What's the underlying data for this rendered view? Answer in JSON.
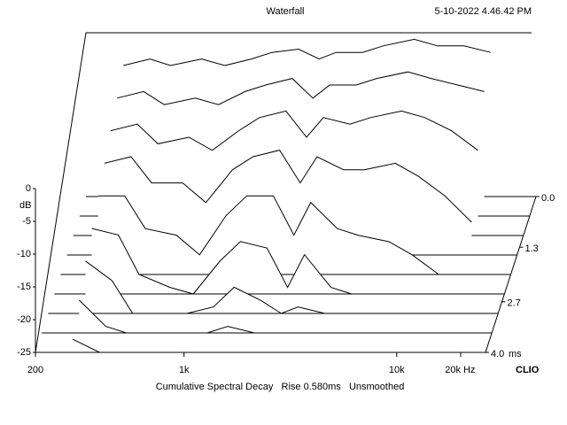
{
  "chart_data": {
    "type": "waterfall",
    "title": "Waterfall",
    "timestamp": "5-10-2022 4.46.42 PM",
    "footer": "Cumulative Spectral Decay   Rise 0.580ms   Unsmoothed",
    "brand": "CLIO",
    "ylabel": "dB",
    "xlabel": "Hz",
    "zlabel": "ms",
    "color": "#000000",
    "log_x": true,
    "xlim": [
      200,
      20000
    ],
    "ylim": [
      -25,
      0
    ],
    "zlim": [
      0,
      4
    ],
    "xticks": [
      200,
      {
        "value": 1000,
        "label": "1k"
      },
      {
        "value": 10000,
        "label": "10k"
      },
      {
        "value": 20000,
        "label": "20k"
      }
    ],
    "yticks": [
      0,
      -5,
      -10,
      -15,
      -20,
      -25
    ],
    "zticks": [
      {
        "value": 0,
        "label": "0.0"
      },
      1.3,
      2.7,
      {
        "value": 4,
        "label": "4.0"
      }
    ],
    "x": [
      300,
      400,
      500,
      700,
      900,
      1200,
      1500,
      2000,
      2500,
      3000,
      4000,
      5000,
      7000,
      9000,
      12000,
      16000
    ],
    "z": [
      0,
      0.5,
      1,
      1.5,
      2,
      2.5,
      3,
      3.5,
      4
    ],
    "values": [
      [
        -5,
        -4,
        -5,
        -4,
        -5,
        -4,
        -3,
        -2.5,
        -4,
        -3,
        -3,
        -2,
        -1,
        -2,
        -2,
        -3
      ],
      [
        -7,
        -6,
        -8,
        -7,
        -8,
        -6,
        -5,
        -4,
        -7,
        -5,
        -5,
        -4,
        -3,
        -4,
        -5,
        -6
      ],
      [
        -9,
        -8,
        -11,
        -10,
        -12,
        -9,
        -7,
        -6,
        -10,
        -7,
        -8,
        -7,
        -6,
        -7,
        -9,
        -12
      ],
      [
        -11,
        -10,
        -14,
        -14,
        -17,
        -12,
        -10,
        -9,
        -14,
        -10,
        -12,
        -12,
        -11,
        -13,
        -16,
        -20
      ],
      [
        -13,
        -13,
        -18,
        -19,
        -22,
        -16,
        -13,
        -13,
        -19,
        -14,
        -18,
        -19,
        -20,
        -22,
        -25,
        -25
      ],
      [
        -15,
        -16,
        -22,
        -24,
        -25,
        -20,
        -17,
        -18,
        -24,
        -19,
        -24,
        -25,
        -25,
        -25,
        -25,
        -25
      ],
      [
        -17,
        -20,
        -25,
        -25,
        -25,
        -24,
        -21,
        -23,
        -25,
        -24,
        -25,
        -25,
        -25,
        -25,
        -25,
        -25
      ],
      [
        -20,
        -24,
        -25,
        -25,
        -25,
        -25,
        -24,
        -25,
        -25,
        -25,
        -25,
        -25,
        -25,
        -25,
        -25,
        -25
      ],
      [
        -23,
        -25,
        -25,
        -25,
        -25,
        -25,
        -25,
        -25,
        -25,
        -25,
        -25,
        -25,
        -25,
        -25,
        -25,
        -25
      ]
    ]
  }
}
